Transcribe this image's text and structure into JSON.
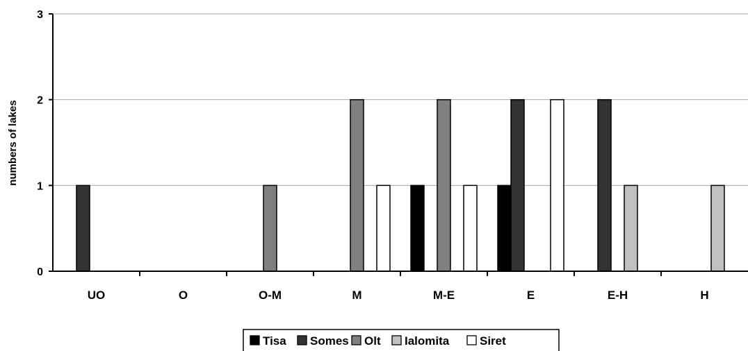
{
  "chart_data": {
    "type": "bar",
    "title": "",
    "xlabel": "",
    "ylabel": "numbers of lakes",
    "ylim": [
      0,
      3
    ],
    "yticks": [
      0,
      1,
      2,
      3
    ],
    "grid": true,
    "legend_position": "bottom",
    "categories": [
      "UO",
      "O",
      "O-M",
      "M",
      "M-E",
      "E",
      "E-H",
      "H"
    ],
    "series": [
      {
        "name": "Tisa",
        "color": "#000000",
        "values": [
          0,
          0,
          0,
          0,
          1,
          1,
          0,
          0
        ]
      },
      {
        "name": "Somes",
        "color": "#333333",
        "values": [
          1,
          0,
          0,
          0,
          0,
          2,
          2,
          0
        ]
      },
      {
        "name": "Olt",
        "color": "#808080",
        "values": [
          0,
          0,
          1,
          2,
          2,
          0,
          0,
          0
        ]
      },
      {
        "name": "Ialomita",
        "color": "#c0c0c0",
        "values": [
          0,
          0,
          0,
          0,
          0,
          0,
          1,
          1
        ]
      },
      {
        "name": "Siret",
        "color": "#ffffff",
        "values": [
          0,
          0,
          0,
          1,
          1,
          2,
          0,
          0
        ]
      }
    ]
  }
}
